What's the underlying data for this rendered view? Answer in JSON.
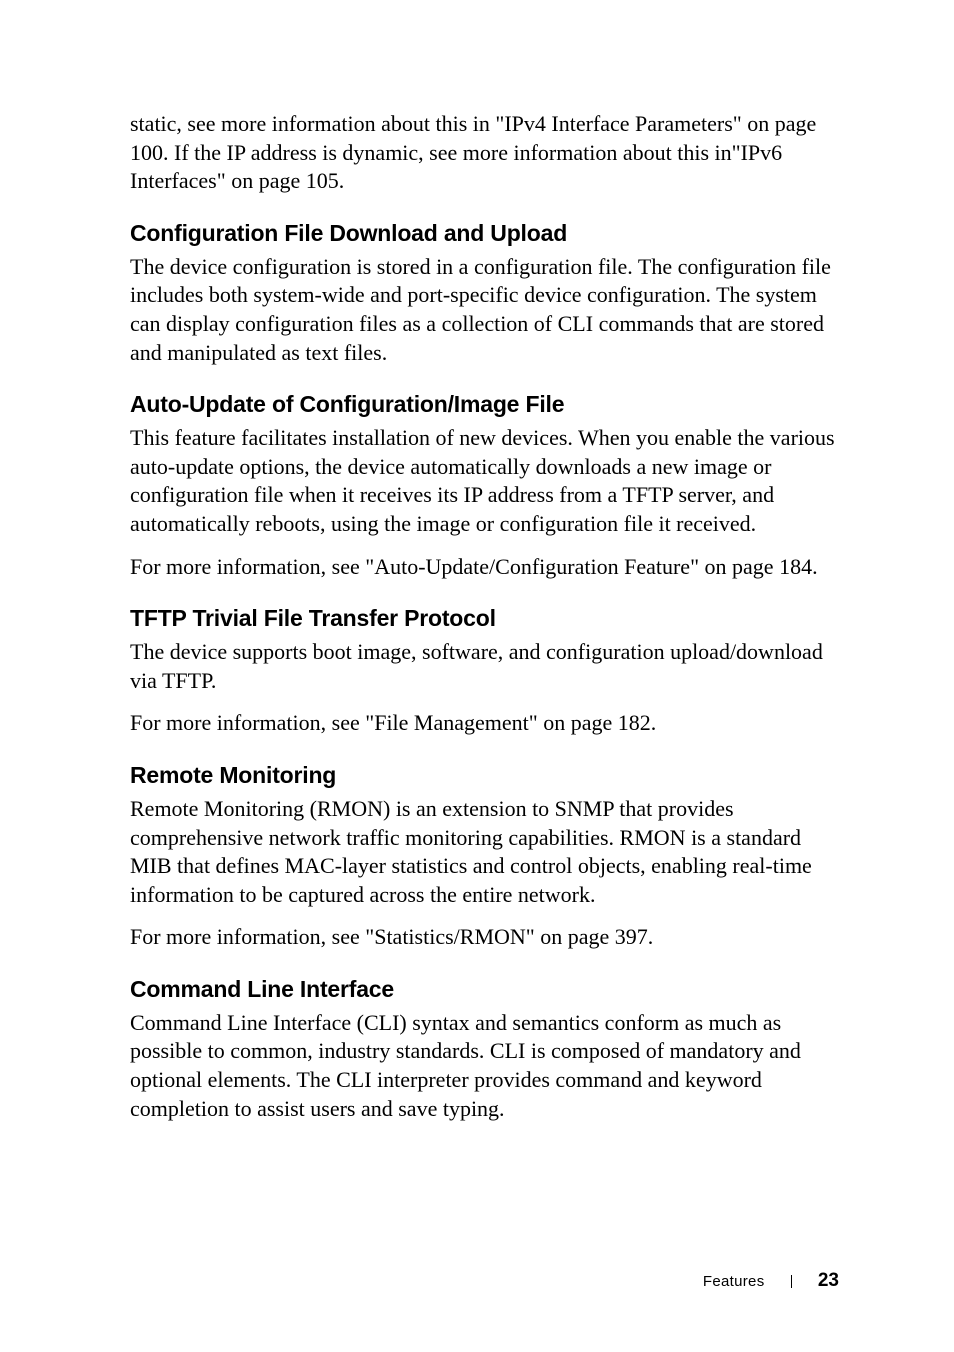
{
  "intro": {
    "p1": "static, see more information about this in \"IPv4 Interface Parameters\" on page 100. If the IP address is dynamic, see more information about this in\"IPv6 Interfaces\" on page 105."
  },
  "sections": [
    {
      "heading": "Configuration File Download and Upload",
      "paras": [
        "The device configuration is stored in a configuration file. The configuration file includes both system-wide and port-specific device configuration. The system can display configuration files as a collection of CLI commands that are stored and manipulated as text files."
      ]
    },
    {
      "heading": "Auto-Update of Configuration/Image File",
      "paras": [
        "This feature facilitates installation of new devices. When you enable the various auto-update options, the device automatically downloads a new image or configuration file when it receives its IP address from a TFTP server, and automatically reboots, using the image or configuration file it received.",
        "For more information, see \"Auto-Update/Configuration Feature\" on page 184."
      ]
    },
    {
      "heading": "TFTP Trivial File Transfer Protocol",
      "paras": [
        "The device supports boot image, software, and configuration upload/download via TFTP.",
        "For more information, see \"File Management\" on page 182."
      ]
    },
    {
      "heading": "Remote Monitoring",
      "paras": [
        "Remote Monitoring (RMON) is an extension to SNMP that provides comprehensive network traffic monitoring capabilities. RMON is a standard MIB that defines MAC-layer statistics and control objects, enabling real-time information to be captured across the entire network.",
        "For more information, see \"Statistics/RMON\" on page 397."
      ]
    },
    {
      "heading": "Command Line Interface",
      "paras": [
        "Command Line Interface (CLI) syntax and semantics conform as much as possible to common, industry standards. CLI is composed of mandatory and optional elements. The CLI interpreter provides command and keyword completion to assist users and save typing."
      ]
    }
  ],
  "footer": {
    "section_label": "Features",
    "page_number": "23"
  },
  "style": {
    "body_font_size_pt": 16,
    "heading_font_size_pt": 17,
    "text_color": "#000000",
    "background_color": "#ffffff"
  }
}
